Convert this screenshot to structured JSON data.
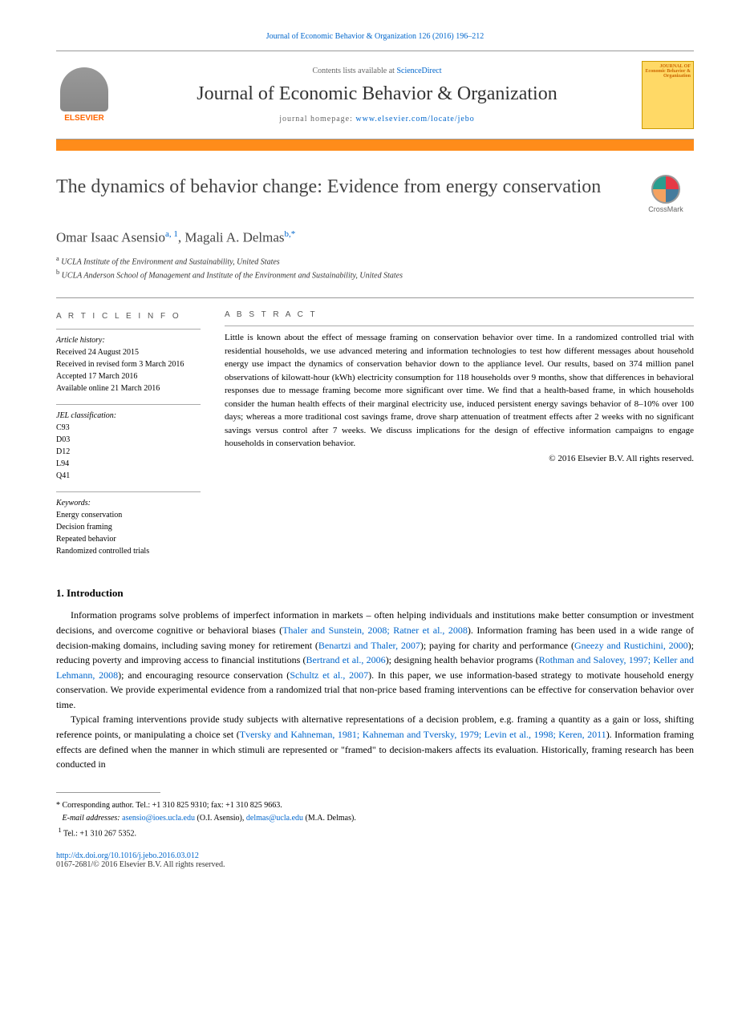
{
  "citation": "Journal of Economic Behavior & Organization 126 (2016) 196–212",
  "header": {
    "contents_prefix": "Contents lists available at ",
    "contents_link": "ScienceDirect",
    "journal_name": "Journal of Economic Behavior & Organization",
    "homepage_prefix": "journal homepage: ",
    "homepage_url": "www.elsevier.com/locate/jebo",
    "elsevier_label": "ELSEVIER",
    "cover_title": "JOURNAL OF Economic Behavior & Organization"
  },
  "crossmark_label": "CrossMark",
  "article": {
    "title": "The dynamics of behavior change: Evidence from energy conservation",
    "authors_html": "Omar Isaac Asensio",
    "author1_sup": "a, 1",
    "author_sep": ", ",
    "author2": "Magali A. Delmas",
    "author2_sup": "b,*",
    "affiliations": {
      "a": "UCLA Institute of the Environment and Sustainability, United States",
      "b": "UCLA Anderson School of Management and Institute of the Environment and Sustainability, United States"
    }
  },
  "info": {
    "heading": "A R T I C L E   I N F O",
    "history_label": "Article history:",
    "history": [
      "Received 24 August 2015",
      "Received in revised form 3 March 2016",
      "Accepted 17 March 2016",
      "Available online 21 March 2016"
    ],
    "jel_label": "JEL classification:",
    "jel": [
      "C93",
      "D03",
      "D12",
      "L94",
      "Q41"
    ],
    "keywords_label": "Keywords:",
    "keywords": [
      "Energy conservation",
      "Decision framing",
      "Repeated behavior",
      "Randomized controlled trials"
    ]
  },
  "abstract": {
    "heading": "A B S T R A C T",
    "text": "Little is known about the effect of message framing on conservation behavior over time. In a randomized controlled trial with residential households, we use advanced metering and information technologies to test how different messages about household energy use impact the dynamics of conservation behavior down to the appliance level. Our results, based on 374 million panel observations of kilowatt-hour (kWh) electricity consumption for 118 households over 9 months, show that differences in behavioral responses due to message framing become more significant over time. We find that a health-based frame, in which households consider the human health effects of their marginal electricity use, induced persistent energy savings behavior of 8–10% over 100 days; whereas a more traditional cost savings frame, drove sharp attenuation of treatment effects after 2 weeks with no significant savings versus control after 7 weeks. We discuss implications for the design of effective information campaigns to engage households in conservation behavior.",
    "copyright": "© 2016 Elsevier B.V. All rights reserved."
  },
  "section1": {
    "heading": "1.  Introduction",
    "para1_pre": "Information programs solve problems of imperfect information in markets – often helping individuals and institutions make better consumption or investment decisions, and overcome cognitive or behavioral biases (",
    "ref1": "Thaler and Sunstein, 2008; Ratner et al., 2008",
    "para1_a": "). Information framing has been used in a wide range of decision-making domains, including saving money for retirement (",
    "ref2": "Benartzi and Thaler, 2007",
    "para1_b": "); paying for charity and performance (",
    "ref3": "Gneezy and Rustichini, 2000",
    "para1_c": "); reducing poverty and improving access to financial institutions (",
    "ref4": "Bertrand et al., 2006",
    "para1_d": "); designing health behavior programs (",
    "ref5": "Rothman and Salovey, 1997; Keller and Lehmann, 2008",
    "para1_e": "); and encouraging resource conservation (",
    "ref6": "Schultz et al., 2007",
    "para1_f": "). In this paper, we use information-based strategy to motivate household energy conservation. We provide experimental evidence from a randomized trial that non-price based framing interventions can be effective for conservation behavior over time.",
    "para2_pre": "Typical framing interventions provide study subjects with alternative representations of a decision problem, e.g. framing a quantity as a gain or loss, shifting reference points, or manipulating a choice set (",
    "ref7": "Tversky and Kahneman, 1981; Kahneman and Tversky, 1979; Levin et al., 1998; Keren, 2011",
    "para2_post": "). Information framing effects are defined when the manner in which stimuli are represented or \"framed\" to decision-makers affects its evaluation. Historically, framing research has been conducted in"
  },
  "footnotes": {
    "corr_label": "* Corresponding author. Tel.: +1 310 825 9310; fax: +1 310 825 9663.",
    "email_label": "E-mail addresses: ",
    "email1": "asensio@ioes.ucla.edu",
    "email1_name": " (O.I. Asensio), ",
    "email2": "delmas@ucla.edu",
    "email2_name": " (M.A. Delmas).",
    "tel1": "Tel.: +1 310 267 5352.",
    "tel1_sup": "1"
  },
  "footer": {
    "doi": "http://dx.doi.org/10.1016/j.jebo.2016.03.012",
    "issn_copyright": "0167-2681/© 2016 Elsevier B.V. All rights reserved."
  }
}
